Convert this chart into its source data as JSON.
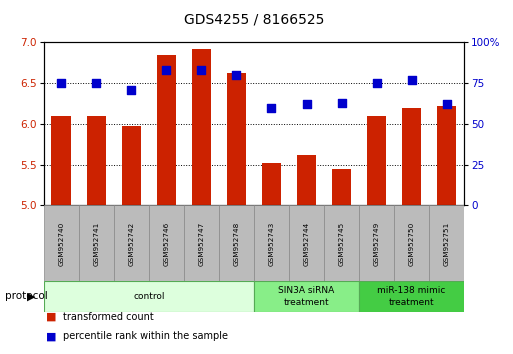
{
  "title": "GDS4255 / 8166525",
  "samples": [
    "GSM952740",
    "GSM952741",
    "GSM952742",
    "GSM952746",
    "GSM952747",
    "GSM952748",
    "GSM952743",
    "GSM952744",
    "GSM952745",
    "GSM952749",
    "GSM952750",
    "GSM952751"
  ],
  "transformed_count": [
    6.1,
    6.1,
    5.97,
    6.85,
    6.92,
    6.62,
    5.52,
    5.62,
    5.44,
    6.1,
    6.2,
    6.22
  ],
  "percentile_rank": [
    75,
    75,
    71,
    83,
    83,
    80,
    60,
    62,
    63,
    75,
    77,
    62
  ],
  "bar_color": "#cc2200",
  "dot_color": "#0000cc",
  "ylim_left": [
    5.0,
    7.0
  ],
  "ylim_right": [
    0,
    100
  ],
  "yticks_left": [
    5.0,
    5.5,
    6.0,
    6.5,
    7.0
  ],
  "yticks_right": [
    0,
    25,
    50,
    75,
    100
  ],
  "groups": [
    {
      "label": "control",
      "start": 0,
      "end": 6,
      "color": "#ddffdd",
      "border_color": "#55aa55"
    },
    {
      "label": "SIN3A siRNA\ntreatment",
      "start": 6,
      "end": 9,
      "color": "#88ee88",
      "border_color": "#55aa55"
    },
    {
      "label": "miR-138 mimic\ntreatment",
      "start": 9,
      "end": 12,
      "color": "#44cc44",
      "border_color": "#55aa55"
    }
  ],
  "protocol_label": "protocol",
  "legend_items": [
    {
      "label": "transformed count",
      "color": "#cc2200"
    },
    {
      "label": "percentile rank within the sample",
      "color": "#0000cc"
    }
  ],
  "label_color_left": "#cc2200",
  "label_color_right": "#0000cc",
  "bar_width": 0.55,
  "dot_size": 28,
  "title_fontsize": 10,
  "tick_fontsize": 7.5
}
